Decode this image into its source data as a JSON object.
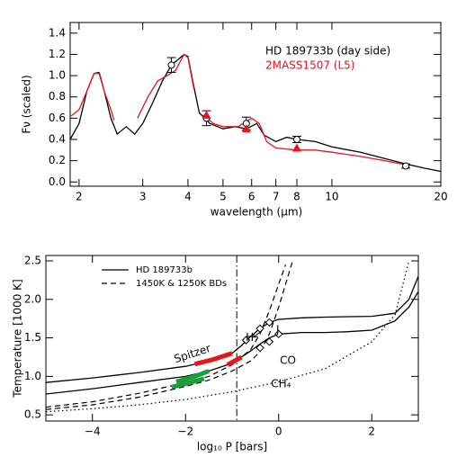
{
  "chart_data": [
    {
      "type": "line",
      "xlog": true,
      "xlabel": "wavelength (μm)",
      "ylabel": "Fν (scaled)",
      "xlim": [
        1.89,
        20
      ],
      "ylim": [
        -0.04,
        1.5
      ],
      "xticks": [
        2,
        3,
        4,
        5,
        6,
        7,
        8,
        10,
        20
      ],
      "yticks": [
        {
          "value": 0,
          "label": "0.0"
        },
        0.2,
        0.4,
        0.6,
        0.8,
        {
          "value": 1,
          "label": "1.0"
        },
        1.2,
        1.4
      ],
      "legend": "text",
      "series": [
        {
          "name": "HD 189733b (day side)",
          "color": "#000000",
          "x": [
            1.89,
            2.0,
            2.1,
            2.2,
            2.27,
            2.35,
            2.45,
            2.55,
            2.7,
            2.85,
            3.0,
            3.2,
            3.4,
            3.6,
            3.75,
            3.9,
            4.0,
            4.15,
            4.3,
            4.6,
            5.0,
            5.4,
            5.8,
            6.2,
            6.5,
            7.0,
            7.5,
            8.0,
            9,
            10,
            12,
            14,
            16,
            18,
            20
          ],
          "values": [
            0.4,
            0.55,
            0.85,
            1.02,
            1.03,
            0.85,
            0.6,
            0.45,
            0.52,
            0.45,
            0.55,
            0.75,
            0.95,
            1.1,
            1.15,
            1.2,
            1.18,
            0.9,
            0.65,
            0.55,
            0.5,
            0.52,
            0.5,
            0.55,
            0.44,
            0.38,
            0.42,
            0.4,
            0.38,
            0.33,
            0.28,
            0.22,
            0.17,
            0.13,
            0.1
          ]
        },
        {
          "name": "2MASS1507 (L5)",
          "color": "#e8141c",
          "x": [
            1.9,
            2.0,
            2.1,
            2.2,
            2.28,
            2.35,
            2.45,
            2.5,
            2.7,
            2.9,
            3.1,
            3.3,
            3.5,
            3.7,
            3.9,
            4.0,
            4.15,
            4.3,
            4.4,
            4.7,
            5.0,
            5.5,
            6.0,
            6.3,
            6.6,
            7.0,
            8.0,
            9,
            10,
            12,
            14,
            15.5
          ],
          "values": [
            0.62,
            0.68,
            0.85,
            1.02,
            1.02,
            0.85,
            0.68,
            0.58,
            null,
            0.6,
            0.8,
            0.95,
            1.0,
            1.05,
            1.2,
            1.17,
            0.88,
            null,
            0.63,
            0.55,
            0.52,
            0.52,
            0.6,
            0.55,
            0.38,
            0.32,
            0.3,
            0.3,
            0.28,
            0.24,
            0.2,
            0.17
          ]
        },
        {
          "marker": "circle",
          "color": "#000000",
          "x": [
            3.6,
            4.5,
            5.8,
            8.0,
            16
          ],
          "values": [
            1.1,
            0.6,
            0.55,
            0.4,
            0.15
          ],
          "errors": [
            0.07,
            0.07,
            0.06,
            0.03,
            0.02
          ]
        },
        {
          "marker": "triangle",
          "color": "#e8141c",
          "x": [
            4.5,
            5.8,
            8.0
          ],
          "values": [
            0.63,
            0.5,
            0.32
          ]
        }
      ]
    },
    {
      "type": "line",
      "xlog": false,
      "xlabel": "log₁₀ P [bars]",
      "ylabel": "Temperature [1000 K]",
      "xlim": [
        -5,
        3
      ],
      "ylim": [
        0.42,
        2.57
      ],
      "xticks": [
        {
          "value": -4,
          "label": "−4"
        },
        {
          "value": -2,
          "label": "−2"
        },
        0,
        2
      ],
      "yticks": [
        0.5,
        {
          "value": 1,
          "label": "1.0"
        },
        1.5,
        {
          "value": 2,
          "label": "2.0"
        },
        2.5
      ],
      "legend": "lines",
      "vlines": [
        -0.9
      ],
      "series": [
        {
          "name": "HD 189733b",
          "color": "#000000",
          "dash": "none",
          "width": 1.3,
          "x": [
            -5,
            -4,
            -3,
            -2,
            -1.5,
            -1,
            -0.8,
            -0.6,
            -0.4,
            -0.2,
            0,
            0.5,
            1,
            2,
            2.5,
            2.8,
            3
          ],
          "values": [
            0.92,
            0.98,
            1.05,
            1.13,
            1.2,
            1.3,
            1.4,
            1.52,
            1.62,
            1.7,
            1.74,
            1.76,
            1.77,
            1.78,
            1.82,
            2.0,
            2.3
          ]
        },
        {
          "color": "#000000",
          "dash": "none",
          "width": 1.3,
          "x": [
            -5,
            -4,
            -3,
            -2,
            -1.5,
            -1,
            -0.6,
            -0.4,
            -0.2,
            0,
            0.5,
            1,
            1.5,
            2,
            2.5,
            2.8,
            3
          ],
          "values": [
            0.77,
            0.84,
            0.92,
            1.0,
            1.07,
            1.17,
            1.33,
            1.42,
            1.5,
            1.55,
            1.57,
            1.57,
            1.58,
            1.6,
            1.72,
            1.9,
            2.1
          ]
        },
        {
          "name": "1450K & 1250K BDs",
          "color": "#000000",
          "dash": "6 4",
          "width": 1.2,
          "x": [
            -5,
            -4,
            -3,
            -2,
            -1.5,
            -1,
            -0.6,
            -0.4,
            -0.2,
            0,
            0.15
          ],
          "values": [
            0.6,
            0.67,
            0.78,
            0.92,
            1.0,
            1.15,
            1.35,
            1.55,
            1.85,
            2.2,
            2.45
          ]
        },
        {
          "color": "#000000",
          "dash": "6 4",
          "width": 1.2,
          "x": [
            -5,
            -4,
            -3,
            -2,
            -1.5,
            -1,
            -0.6,
            -0.4,
            -0.2,
            0,
            0.2,
            0.3
          ],
          "values": [
            0.57,
            0.63,
            0.73,
            0.87,
            0.95,
            1.07,
            1.2,
            1.32,
            1.55,
            1.9,
            2.3,
            2.5
          ]
        },
        {
          "color": "#000000",
          "dash": "1.5 3",
          "width": 1.2,
          "x": [
            -5,
            -4,
            -3,
            -2,
            -1,
            0,
            1,
            2,
            2.5,
            2.8
          ],
          "values": [
            0.54,
            0.58,
            0.63,
            0.7,
            0.8,
            0.93,
            1.1,
            1.45,
            1.8,
            2.5
          ]
        },
        {
          "color": "#e8141c",
          "dash": "none",
          "width": 5,
          "x": [
            -1.8,
            -1.4,
            -1.0
          ],
          "values": [
            1.16,
            1.22,
            1.3
          ]
        },
        {
          "color": "#e8141c",
          "dash": "none",
          "width": 5,
          "x": [
            -1.1,
            -0.8
          ],
          "values": [
            1.15,
            1.25
          ]
        },
        {
          "color": "#1a9e3a",
          "dash": "none",
          "width": 5,
          "x": [
            -2.2,
            -1.8,
            -1.5
          ],
          "values": [
            0.93,
            1.0,
            1.07
          ]
        },
        {
          "color": "#1a9e3a",
          "dash": "none",
          "width": 5,
          "x": [
            -2.3,
            -1.9,
            -1.6
          ],
          "values": [
            0.86,
            0.92,
            0.97
          ]
        },
        {
          "marker": "diamond",
          "color": "#000000",
          "x": [
            -0.7,
            -0.4,
            -0.2,
            -0.4,
            -0.2,
            0.0
          ],
          "values": [
            1.47,
            1.62,
            1.7,
            1.37,
            1.45,
            1.55
          ]
        }
      ],
      "annotations": [
        "Spitzer",
        "H",
        "J",
        "CO",
        "CH₄"
      ]
    }
  ]
}
